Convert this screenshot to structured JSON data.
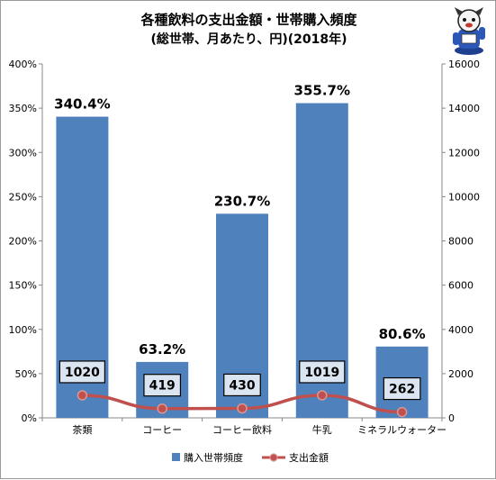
{
  "title": "各種飲料の支出金額・世帯購入頻度",
  "subtitle": "(総世帯、月あたり、円)(2018年)",
  "colors": {
    "bar": "#4f81bd",
    "line": "#c0504d",
    "marker_fill": "#c0504d",
    "marker_stroke": "#d99795",
    "box_fill": "#dbe5f1",
    "box_stroke": "#000000"
  },
  "chart_data": {
    "type": "bar+line",
    "categories": [
      "茶類",
      "コーヒー",
      "コーヒー飲料",
      "牛乳",
      "ミネラルウォーター"
    ],
    "series": [
      {
        "name": "購入世帯頻度",
        "type": "bar",
        "axis": "left",
        "values": [
          340.4,
          63.2,
          230.7,
          355.7,
          80.6
        ],
        "labels": [
          "340.4%",
          "63.2%",
          "230.7%",
          "355.7%",
          "80.6%"
        ]
      },
      {
        "name": "支出金額",
        "type": "line",
        "axis": "right",
        "values": [
          1020,
          419,
          430,
          1019,
          262
        ],
        "labels": [
          "1020",
          "419",
          "430",
          "1019",
          "262"
        ]
      }
    ],
    "left_axis": {
      "ylim": [
        0,
        400
      ],
      "ticks": [
        0,
        50,
        100,
        150,
        200,
        250,
        300,
        350,
        400
      ],
      "tick_labels": [
        "0%",
        "50%",
        "100%",
        "150%",
        "200%",
        "250%",
        "300%",
        "350%",
        "400%"
      ]
    },
    "right_axis": {
      "ylim": [
        0,
        16000
      ],
      "ticks": [
        0,
        2000,
        4000,
        6000,
        8000,
        10000,
        12000,
        14000,
        16000
      ],
      "tick_labels": [
        "0",
        "2000",
        "4000",
        "6000",
        "8000",
        "10000",
        "12000",
        "14000",
        "16000"
      ]
    },
    "grid": false,
    "legend": "bottom"
  }
}
